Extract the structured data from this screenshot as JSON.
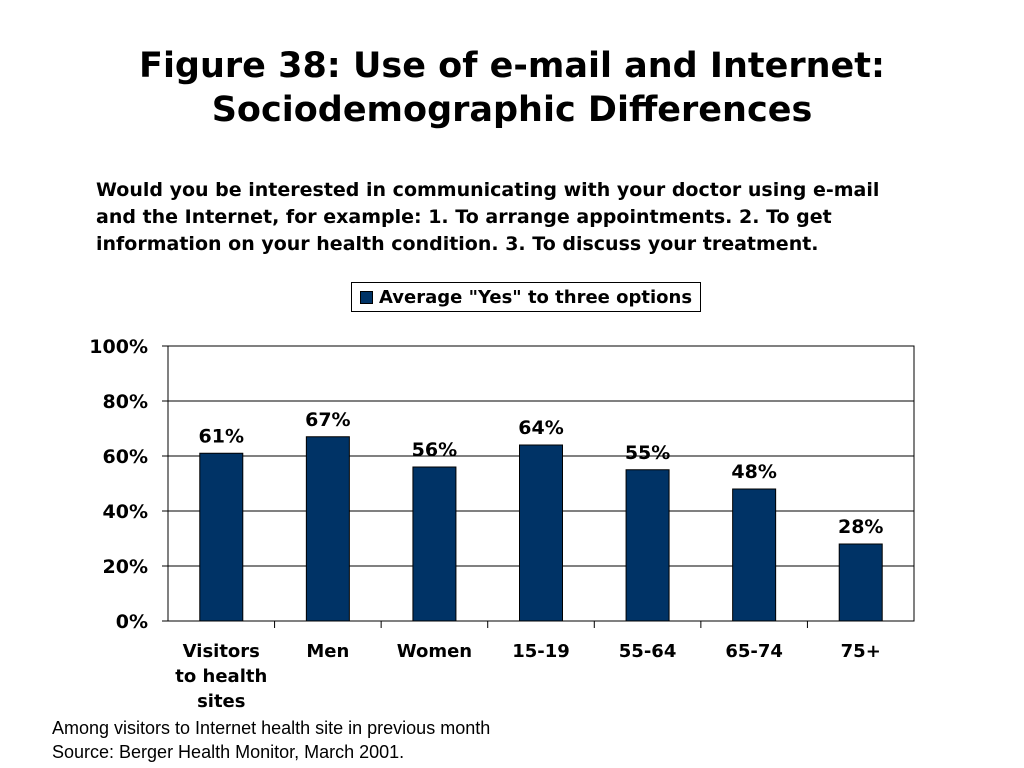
{
  "title": {
    "line1": "Figure 38: Use of e-mail and Internet:",
    "line2": "Sociodemographic Differences"
  },
  "question": {
    "line1": "Would you be interested in communicating with your doctor using e-mail",
    "line2": "and the Internet, for example: 1. To arrange appointments. 2. To get",
    "line3": "information on your health condition. 3. To discuss your treatment."
  },
  "footnote": {
    "line1": "Among visitors to Internet health site in previous month",
    "line2": "Source: Berger Health Monitor, March 2001."
  },
  "colors": {
    "bar": "#003366",
    "grid": "#000000"
  },
  "chart_data": {
    "type": "bar",
    "categories": [
      [
        "Visitors",
        "to health",
        "sites"
      ],
      [
        "Men"
      ],
      [
        "Women"
      ],
      [
        "15-19"
      ],
      [
        "55-64"
      ],
      [
        "65-74"
      ],
      [
        "75+"
      ]
    ],
    "series": [
      {
        "name": "Average \"Yes\" to three options",
        "values": [
          61,
          67,
          56,
          64,
          55,
          48,
          28
        ],
        "labels": [
          "61%",
          "67%",
          "56%",
          "64%",
          "55%",
          "48%",
          "28%"
        ]
      }
    ],
    "ylim": [
      0,
      100
    ],
    "yticks": [
      0,
      20,
      40,
      60,
      80,
      100
    ],
    "ytick_labels": [
      "0%",
      "20%",
      "40%",
      "60%",
      "80%",
      "100%"
    ],
    "grid": true,
    "legend_position": "top-center"
  }
}
